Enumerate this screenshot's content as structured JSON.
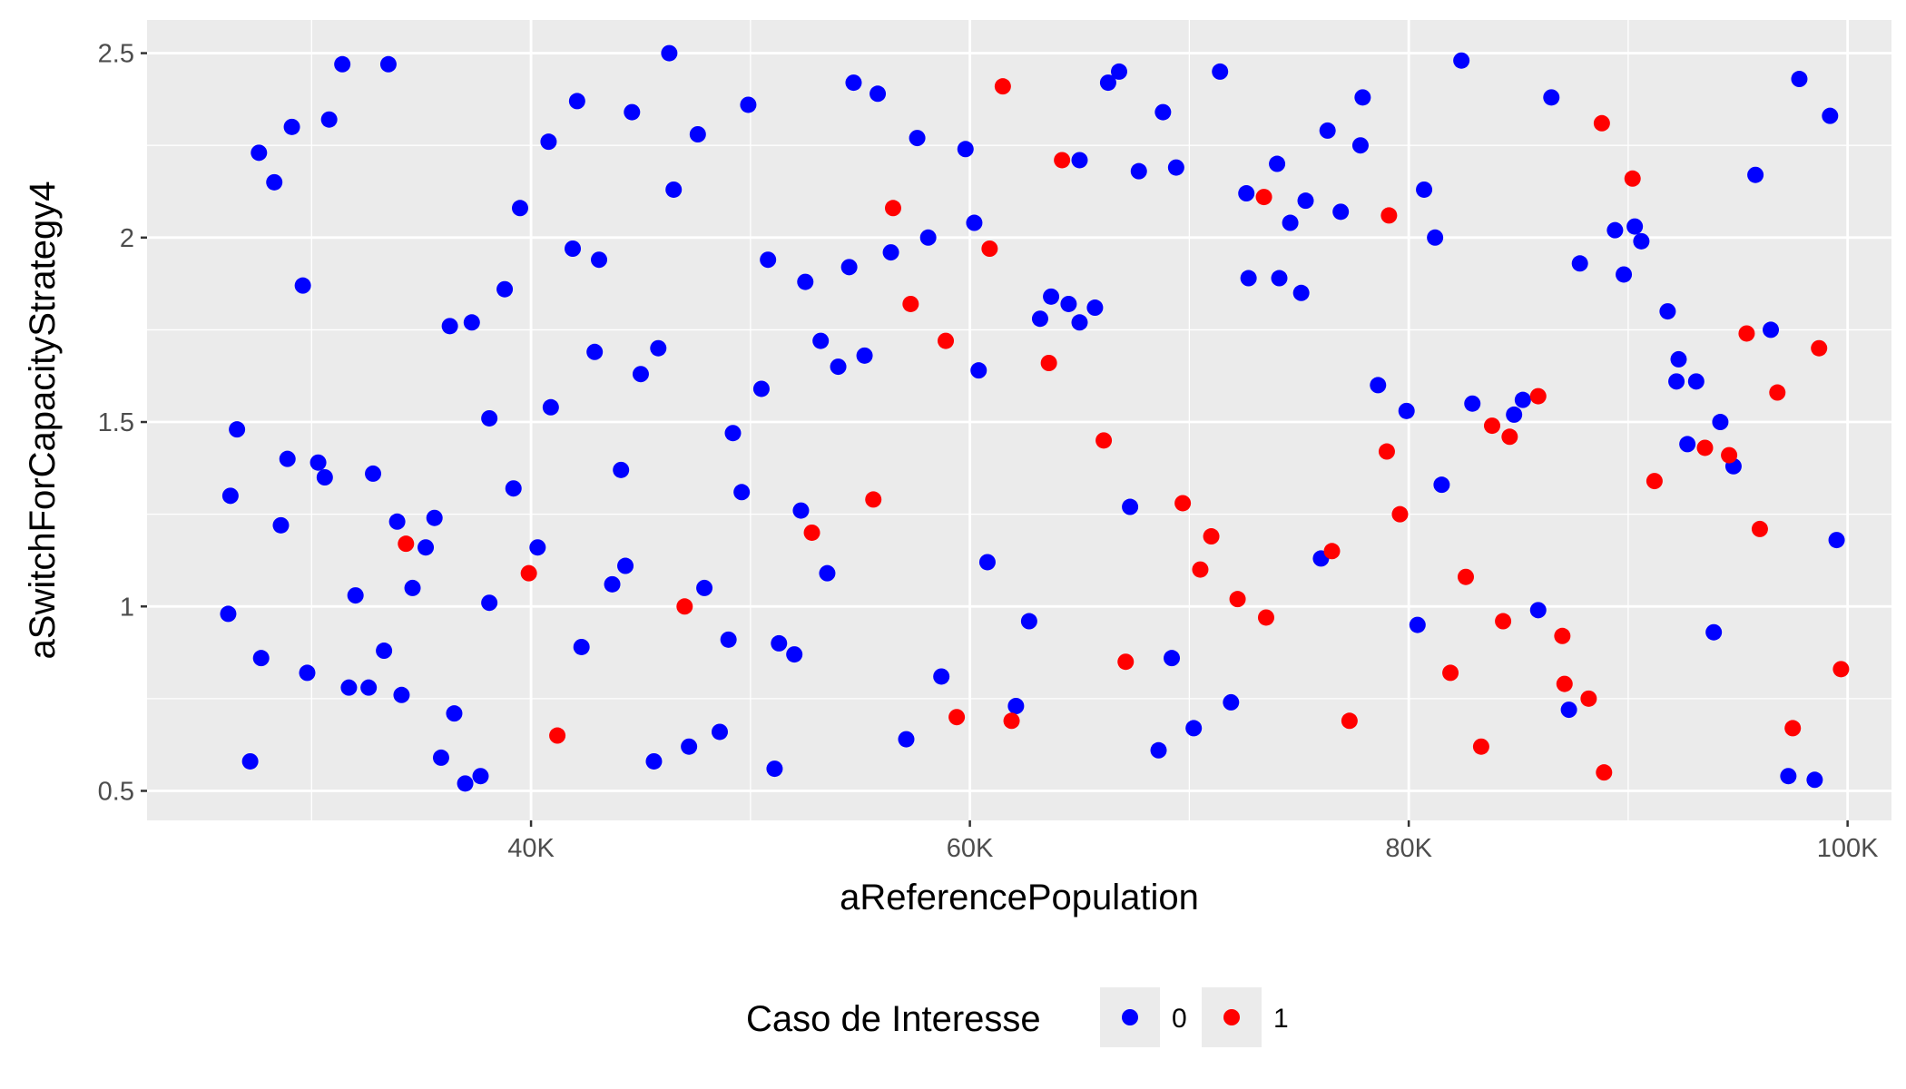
{
  "chart_data": {
    "type": "scatter",
    "xlabel": "aReferencePopulation",
    "ylabel": "aSwitchForCapacityStrategy4",
    "xlim": [
      22500,
      102000
    ],
    "ylim": [
      0.42,
      2.59
    ],
    "x_ticks": [
      {
        "value": 40000,
        "label": "40K"
      },
      {
        "value": 60000,
        "label": "60K"
      },
      {
        "value": 80000,
        "label": "80K"
      },
      {
        "value": 100000,
        "label": "100K"
      }
    ],
    "y_ticks": [
      {
        "value": 0.5,
        "label": "0.5"
      },
      {
        "value": 1.0,
        "label": "1"
      },
      {
        "value": 1.5,
        "label": "1.5"
      },
      {
        "value": 2.0,
        "label": "2"
      },
      {
        "value": 2.5,
        "label": "2.5"
      }
    ],
    "grid": true,
    "legend": {
      "title": "Caso de Interesse",
      "position": "bottom",
      "entries": [
        {
          "label": "0",
          "color": "#0000FF"
        },
        {
          "label": "1",
          "color": "#FF0000"
        }
      ]
    },
    "series": [
      {
        "name": "0",
        "color": "#0000FF",
        "points": [
          [
            26200,
            0.98
          ],
          [
            26300,
            1.3
          ],
          [
            26600,
            1.48
          ],
          [
            27200,
            0.58
          ],
          [
            27600,
            2.23
          ],
          [
            27700,
            0.86
          ],
          [
            28300,
            2.15
          ],
          [
            28600,
            1.22
          ],
          [
            28900,
            1.4
          ],
          [
            29100,
            2.3
          ],
          [
            29600,
            1.87
          ],
          [
            29800,
            0.82
          ],
          [
            30300,
            1.39
          ],
          [
            30600,
            1.35
          ],
          [
            30800,
            2.32
          ],
          [
            31400,
            2.47
          ],
          [
            31700,
            0.78
          ],
          [
            32000,
            1.03
          ],
          [
            32600,
            0.78
          ],
          [
            32800,
            1.36
          ],
          [
            33300,
            0.88
          ],
          [
            33500,
            2.47
          ],
          [
            33900,
            1.23
          ],
          [
            34100,
            0.76
          ],
          [
            34600,
            1.05
          ],
          [
            35200,
            1.16
          ],
          [
            35600,
            1.24
          ],
          [
            35900,
            0.59
          ],
          [
            36300,
            1.76
          ],
          [
            36500,
            0.71
          ],
          [
            37000,
            0.52
          ],
          [
            37300,
            1.77
          ],
          [
            37700,
            0.54
          ],
          [
            38100,
            1.01
          ],
          [
            38100,
            1.51
          ],
          [
            38800,
            1.86
          ],
          [
            39200,
            1.32
          ],
          [
            39500,
            2.08
          ],
          [
            40300,
            1.16
          ],
          [
            40800,
            2.26
          ],
          [
            40900,
            1.54
          ],
          [
            41900,
            1.97
          ],
          [
            42100,
            2.37
          ],
          [
            42300,
            0.89
          ],
          [
            42900,
            1.69
          ],
          [
            43100,
            1.94
          ],
          [
            43700,
            1.06
          ],
          [
            44100,
            1.37
          ],
          [
            44300,
            1.11
          ],
          [
            44600,
            2.34
          ],
          [
            45000,
            1.63
          ],
          [
            45600,
            0.58
          ],
          [
            45800,
            1.7
          ],
          [
            46300,
            2.5
          ],
          [
            46500,
            2.13
          ],
          [
            47200,
            0.62
          ],
          [
            47600,
            2.28
          ],
          [
            47900,
            1.05
          ],
          [
            48600,
            0.66
          ],
          [
            49000,
            0.91
          ],
          [
            49200,
            1.47
          ],
          [
            49600,
            1.31
          ],
          [
            49900,
            2.36
          ],
          [
            50500,
            1.59
          ],
          [
            50800,
            1.94
          ],
          [
            51100,
            0.56
          ],
          [
            51300,
            0.9
          ],
          [
            52000,
            0.87
          ],
          [
            52300,
            1.26
          ],
          [
            52500,
            1.88
          ],
          [
            53200,
            1.72
          ],
          [
            53500,
            1.09
          ],
          [
            54000,
            1.65
          ],
          [
            54500,
            1.92
          ],
          [
            54700,
            2.42
          ],
          [
            55200,
            1.68
          ],
          [
            55800,
            2.39
          ],
          [
            56400,
            1.96
          ],
          [
            57100,
            0.64
          ],
          [
            57600,
            2.27
          ],
          [
            58100,
            2.0
          ],
          [
            58700,
            0.81
          ],
          [
            59800,
            2.24
          ],
          [
            60200,
            2.04
          ],
          [
            60400,
            1.64
          ],
          [
            60800,
            1.12
          ],
          [
            62100,
            0.73
          ],
          [
            62700,
            0.96
          ],
          [
            63200,
            1.78
          ],
          [
            63700,
            1.84
          ],
          [
            64500,
            1.82
          ],
          [
            65000,
            2.21
          ],
          [
            65000,
            1.77
          ],
          [
            65700,
            1.81
          ],
          [
            66300,
            2.42
          ],
          [
            66800,
            2.45
          ],
          [
            67300,
            1.27
          ],
          [
            67700,
            2.18
          ],
          [
            68600,
            0.61
          ],
          [
            68800,
            2.34
          ],
          [
            69200,
            0.86
          ],
          [
            69400,
            2.19
          ],
          [
            70200,
            0.67
          ],
          [
            71400,
            2.45
          ],
          [
            71900,
            0.74
          ],
          [
            72600,
            2.12
          ],
          [
            72700,
            1.89
          ],
          [
            74000,
            2.2
          ],
          [
            74100,
            1.89
          ],
          [
            74600,
            2.04
          ],
          [
            75100,
            1.85
          ],
          [
            75300,
            2.1
          ],
          [
            76000,
            1.13
          ],
          [
            76300,
            2.29
          ],
          [
            76900,
            2.07
          ],
          [
            77800,
            2.25
          ],
          [
            77900,
            2.38
          ],
          [
            78600,
            1.6
          ],
          [
            79900,
            1.53
          ],
          [
            80400,
            0.95
          ],
          [
            80700,
            2.13
          ],
          [
            81200,
            2.0
          ],
          [
            81500,
            1.33
          ],
          [
            82400,
            2.48
          ],
          [
            82900,
            1.55
          ],
          [
            84800,
            1.52
          ],
          [
            85200,
            1.56
          ],
          [
            85900,
            0.99
          ],
          [
            86500,
            2.38
          ],
          [
            87300,
            0.72
          ],
          [
            87800,
            1.93
          ],
          [
            89400,
            2.02
          ],
          [
            89800,
            1.9
          ],
          [
            90300,
            2.03
          ],
          [
            90600,
            1.99
          ],
          [
            91800,
            1.8
          ],
          [
            92200,
            1.61
          ],
          [
            92300,
            1.67
          ],
          [
            92700,
            1.44
          ],
          [
            93100,
            1.61
          ],
          [
            93900,
            0.93
          ],
          [
            94200,
            1.5
          ],
          [
            94800,
            1.38
          ],
          [
            95800,
            2.17
          ],
          [
            96500,
            1.75
          ],
          [
            97300,
            0.54
          ],
          [
            97800,
            2.43
          ],
          [
            98500,
            0.53
          ],
          [
            99200,
            2.33
          ],
          [
            99500,
            1.18
          ]
        ]
      },
      {
        "name": "1",
        "color": "#FF0000",
        "points": [
          [
            34300,
            1.17
          ],
          [
            39900,
            1.09
          ],
          [
            41200,
            0.65
          ],
          [
            47000,
            1.0
          ],
          [
            52800,
            1.2
          ],
          [
            55600,
            1.29
          ],
          [
            56500,
            2.08
          ],
          [
            57300,
            1.82
          ],
          [
            58900,
            1.72
          ],
          [
            59400,
            0.7
          ],
          [
            60900,
            1.97
          ],
          [
            61500,
            2.41
          ],
          [
            61900,
            0.69
          ],
          [
            63600,
            1.66
          ],
          [
            64200,
            2.21
          ],
          [
            66100,
            1.45
          ],
          [
            67100,
            0.85
          ],
          [
            69700,
            1.28
          ],
          [
            70500,
            1.1
          ],
          [
            71000,
            1.19
          ],
          [
            72200,
            1.02
          ],
          [
            73400,
            2.11
          ],
          [
            73500,
            0.97
          ],
          [
            76500,
            1.15
          ],
          [
            77300,
            0.69
          ],
          [
            79000,
            1.42
          ],
          [
            79100,
            2.06
          ],
          [
            79600,
            1.25
          ],
          [
            81900,
            0.82
          ],
          [
            82600,
            1.08
          ],
          [
            83300,
            0.62
          ],
          [
            83800,
            1.49
          ],
          [
            84300,
            0.96
          ],
          [
            84600,
            1.46
          ],
          [
            85900,
            1.57
          ],
          [
            87000,
            0.92
          ],
          [
            87100,
            0.79
          ],
          [
            88200,
            0.75
          ],
          [
            88800,
            2.31
          ],
          [
            88900,
            0.55
          ],
          [
            90200,
            2.16
          ],
          [
            91200,
            1.34
          ],
          [
            93500,
            1.43
          ],
          [
            94600,
            1.41
          ],
          [
            95400,
            1.74
          ],
          [
            96000,
            1.21
          ],
          [
            96800,
            1.58
          ],
          [
            97500,
            0.67
          ],
          [
            98700,
            1.7
          ],
          [
            99700,
            0.83
          ]
        ]
      }
    ]
  }
}
